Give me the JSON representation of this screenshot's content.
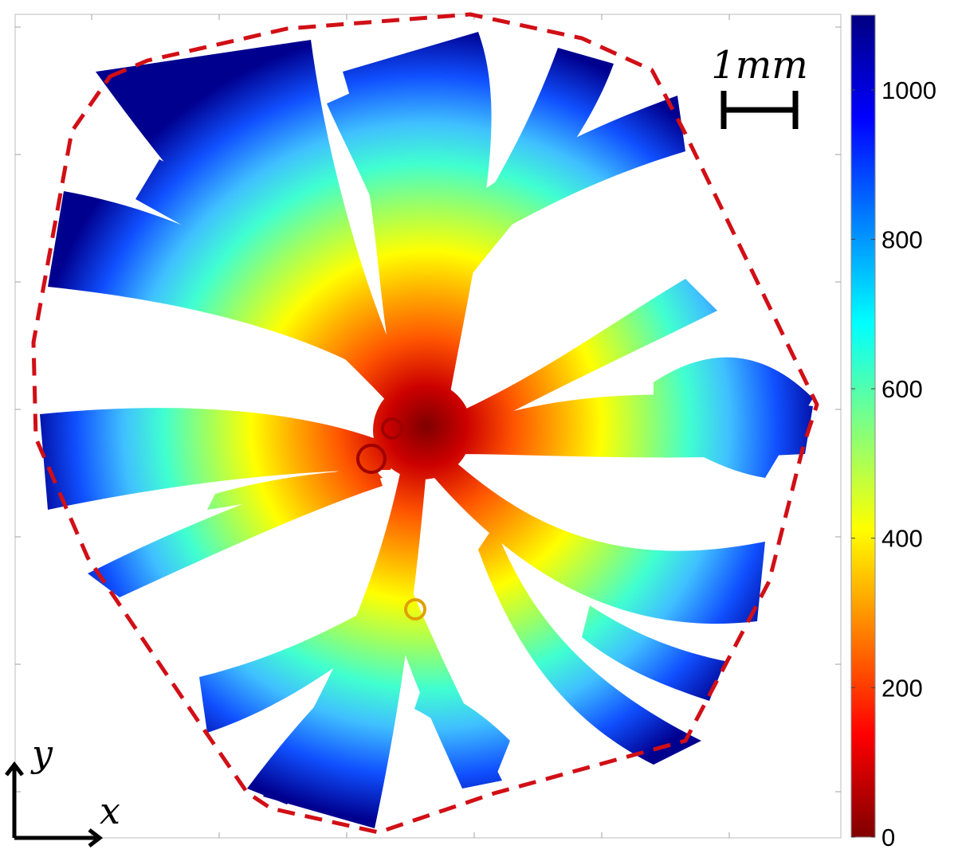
{
  "figure": {
    "scale_bar": {
      "label": "1mm"
    },
    "axes_indicator": {
      "x_label": "x",
      "y_label": "y"
    },
    "colorbar": {
      "colormap": "jet",
      "min": 0,
      "max": 1100,
      "ticks": [
        {
          "value": 0,
          "label": "0"
        },
        {
          "value": 200,
          "label": "200"
        },
        {
          "value": 400,
          "label": "400"
        },
        {
          "value": 600,
          "label": "600"
        },
        {
          "value": 800,
          "label": "800"
        },
        {
          "value": 1000,
          "label": "1000"
        }
      ]
    },
    "colors": {
      "boundary": "#d10f16",
      "jet": [
        "#800000",
        "#ff0000",
        "#ff8000",
        "#ffff00",
        "#80ff80",
        "#00ffff",
        "#0080ff",
        "#0000ff",
        "#000080"
      ]
    },
    "icons": [
      "branching-pattern",
      "hull-boundary",
      "scale-bar",
      "axis-arrows",
      "colorbar"
    ]
  }
}
